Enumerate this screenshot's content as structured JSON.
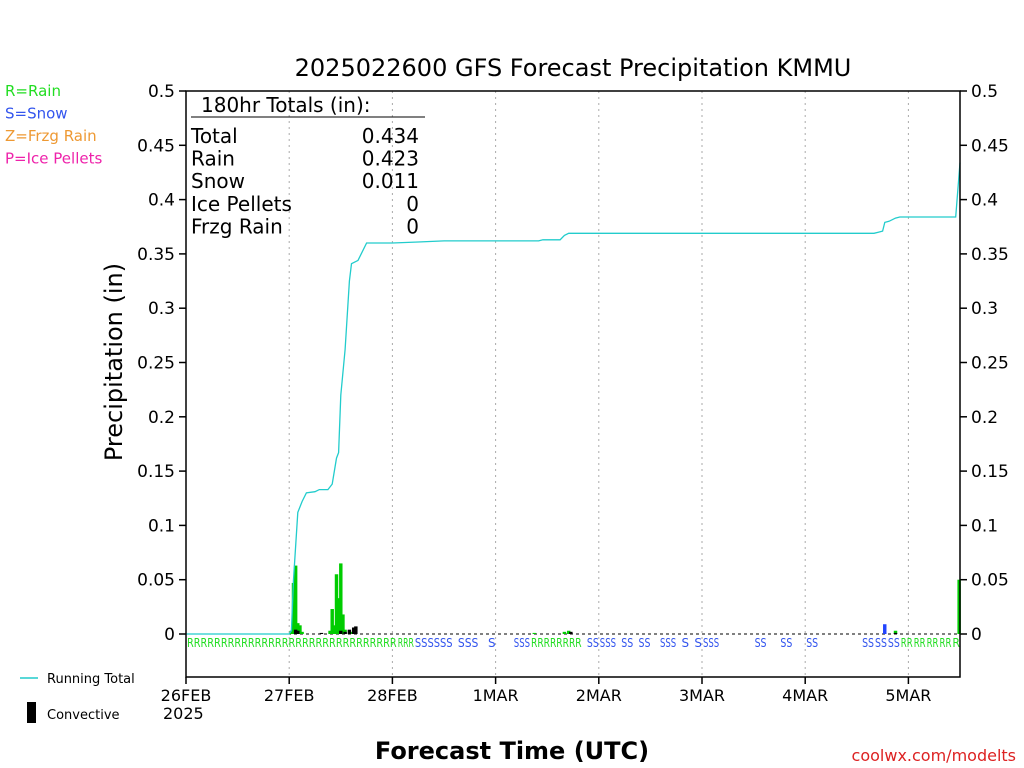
{
  "chart_data": {
    "type": "bar",
    "title": "2025022600 GFS Forecast Precipitation KMMU",
    "xlabel": "Forecast Time (UTC)",
    "ylabel": "Precipitation (in)",
    "ylim": [
      0,
      0.5
    ],
    "xlim": [
      0,
      180
    ],
    "yticks": [
      "0",
      "0.05",
      "0.1",
      "0.15",
      "0.2",
      "0.25",
      "0.3",
      "0.35",
      "0.4",
      "0.45",
      "0.5"
    ],
    "xticks": [
      {
        "h": 0,
        "label": "26FEB"
      },
      {
        "h": 24,
        "label": "27FEB"
      },
      {
        "h": 48,
        "label": "28FEB"
      },
      {
        "h": 72,
        "label": "1MAR"
      },
      {
        "h": 96,
        "label": "2MAR"
      },
      {
        "h": 120,
        "label": "3MAR"
      },
      {
        "h": 144,
        "label": "4MAR"
      },
      {
        "h": 168,
        "label": "5MAR"
      }
    ],
    "year_label": "2025",
    "grid": "vertical dotted",
    "legend_left": [
      {
        "text": "R=Rain",
        "color": "#22dd22"
      },
      {
        "text": "S=Snow",
        "color": "#3355ee"
      },
      {
        "text": "Z=Frzg Rain",
        "color": "#ee9933"
      },
      {
        "text": "P=Ice Pellets",
        "color": "#ee22aa"
      }
    ],
    "legend_bottom": [
      {
        "text": "Running Total",
        "kind": "line",
        "color": "#22cccc"
      },
      {
        "text": "Convective",
        "kind": "bar",
        "color": "#000000"
      }
    ],
    "totals_box": {
      "heading": "180hr Totals (in):",
      "rows": [
        {
          "label": "Total",
          "value": "0.434"
        },
        {
          "label": "Rain",
          "value": "0.423"
        },
        {
          "label": "Snow",
          "value": "0.011"
        },
        {
          "label": "Ice Pellets",
          "value": "0"
        },
        {
          "label": "Frzg Rain",
          "value": "0"
        }
      ]
    },
    "series": [
      {
        "kind": "bars",
        "colors": {
          "rain": "#00cc00",
          "snow": "#2244ff",
          "convective": "#000000"
        },
        "bars": [
          {
            "h": 24.5,
            "v": 0.003,
            "p": "rain"
          },
          {
            "h": 25,
            "v": 0.047,
            "p": "rain"
          },
          {
            "h": 25.5,
            "v": 0.063,
            "p": "rain"
          },
          {
            "h": 26,
            "v": 0.01,
            "p": "rain"
          },
          {
            "h": 26.5,
            "v": 0.008,
            "p": "rain"
          },
          {
            "h": 27,
            "v": 0.002,
            "p": "rain"
          },
          {
            "h": 33.5,
            "v": 0.003,
            "p": "rain"
          },
          {
            "h": 34,
            "v": 0.023,
            "p": "rain"
          },
          {
            "h": 34.5,
            "v": 0.008,
            "p": "rain"
          },
          {
            "h": 35,
            "v": 0.055,
            "p": "rain"
          },
          {
            "h": 35.5,
            "v": 0.033,
            "p": "rain"
          },
          {
            "h": 36,
            "v": 0.065,
            "p": "rain"
          },
          {
            "h": 36.5,
            "v": 0.018,
            "p": "rain"
          },
          {
            "h": 37,
            "v": 0.004,
            "p": "rain"
          },
          {
            "h": 38.5,
            "v": 0.002,
            "p": "rain"
          },
          {
            "h": 39,
            "v": 0.004,
            "p": "rain"
          },
          {
            "h": 81,
            "v": 0.001,
            "p": "rain"
          },
          {
            "h": 88,
            "v": 0.002,
            "p": "rain"
          },
          {
            "h": 89,
            "v": 0.003,
            "p": "rain"
          },
          {
            "h": 162.5,
            "v": 0.009,
            "p": "snow"
          },
          {
            "h": 165,
            "v": 0.003,
            "p": "rain"
          },
          {
            "h": 179.8,
            "v": 0.05,
            "p": "rain"
          }
        ],
        "convective": [
          {
            "h": 25.5,
            "v": 0.004
          },
          {
            "h": 26,
            "v": 0.003
          },
          {
            "h": 31.5,
            "v": 0.001
          },
          {
            "h": 36,
            "v": 0.003
          },
          {
            "h": 37,
            "v": 0.002
          },
          {
            "h": 38,
            "v": 0.004
          },
          {
            "h": 39,
            "v": 0.006
          },
          {
            "h": 39.5,
            "v": 0.007
          },
          {
            "h": 89.5,
            "v": 0.002
          },
          {
            "h": 165,
            "v": 0.001
          }
        ]
      },
      {
        "name": "Running Total",
        "kind": "line",
        "color": "#22cccc",
        "points": [
          [
            0,
            0
          ],
          [
            24,
            0
          ],
          [
            24.5,
            0.003
          ],
          [
            25,
            0.05
          ],
          [
            26,
            0.112
          ],
          [
            27,
            0.122
          ],
          [
            28,
            0.13
          ],
          [
            30,
            0.131
          ],
          [
            31,
            0.133
          ],
          [
            33,
            0.133
          ],
          [
            34,
            0.138
          ],
          [
            35,
            0.162
          ],
          [
            35.5,
            0.167
          ],
          [
            36,
            0.22
          ],
          [
            37,
            0.262
          ],
          [
            38,
            0.325
          ],
          [
            38.5,
            0.341
          ],
          [
            40,
            0.344
          ],
          [
            42,
            0.36
          ],
          [
            48,
            0.36
          ],
          [
            54,
            0.361
          ],
          [
            60,
            0.362
          ],
          [
            72,
            0.362
          ],
          [
            82,
            0.362
          ],
          [
            83,
            0.363
          ],
          [
            87,
            0.363
          ],
          [
            88,
            0.367
          ],
          [
            89,
            0.369
          ],
          [
            96,
            0.369
          ],
          [
            120,
            0.369
          ],
          [
            150,
            0.369
          ],
          [
            160,
            0.369
          ],
          [
            161,
            0.37
          ],
          [
            162,
            0.371
          ],
          [
            162.5,
            0.379
          ],
          [
            163.5,
            0.38
          ],
          [
            165,
            0.383
          ],
          [
            166,
            0.384
          ],
          [
            174,
            0.384
          ],
          [
            179,
            0.384
          ],
          [
            180,
            0.434
          ]
        ]
      }
    ],
    "ptype_strip": [
      {
        "h0": 0,
        "h1": 49,
        "p": "R"
      },
      {
        "h0": 49,
        "h1": 53,
        "p": "S",
        "text": "R"
      },
      {
        "h0": 53,
        "h1": 62,
        "p": "S"
      },
      {
        "h0": 63,
        "h1": 68,
        "p": "S"
      },
      {
        "h0": 70,
        "h1": 72,
        "p": "S"
      },
      {
        "h0": 76,
        "h1": 80,
        "p": "S"
      },
      {
        "h0": 80,
        "h1": 92,
        "p": "R"
      },
      {
        "h0": 93,
        "h1": 96,
        "p": "S"
      },
      {
        "h0": 96,
        "h1": 100,
        "p": "S"
      },
      {
        "h0": 101,
        "h1": 104,
        "p": "S"
      },
      {
        "h0": 105,
        "h1": 108,
        "p": "S"
      },
      {
        "h0": 110,
        "h1": 114,
        "p": "S"
      },
      {
        "h0": 115,
        "h1": 117,
        "p": "S"
      },
      {
        "h0": 118,
        "h1": 120,
        "p": "S"
      },
      {
        "h0": 120,
        "h1": 124,
        "p": "S"
      },
      {
        "h0": 132,
        "h1": 135,
        "p": "S"
      },
      {
        "h0": 138,
        "h1": 141,
        "p": "S"
      },
      {
        "h0": 144,
        "h1": 147,
        "p": "S"
      },
      {
        "h0": 157,
        "h1": 160,
        "p": "S"
      },
      {
        "h0": 160,
        "h1": 163,
        "p": "S"
      },
      {
        "h0": 163,
        "h1": 166,
        "p": "S"
      },
      {
        "h0": 166,
        "h1": 169,
        "p": "R"
      },
      {
        "h0": 169,
        "h1": 172,
        "p": "R"
      },
      {
        "h0": 172,
        "h1": 175,
        "p": "R"
      },
      {
        "h0": 175,
        "h1": 178,
        "p": "R"
      },
      {
        "h0": 178,
        "h1": 180,
        "p": "R"
      }
    ],
    "credit": "coolwx.com/modelts"
  }
}
